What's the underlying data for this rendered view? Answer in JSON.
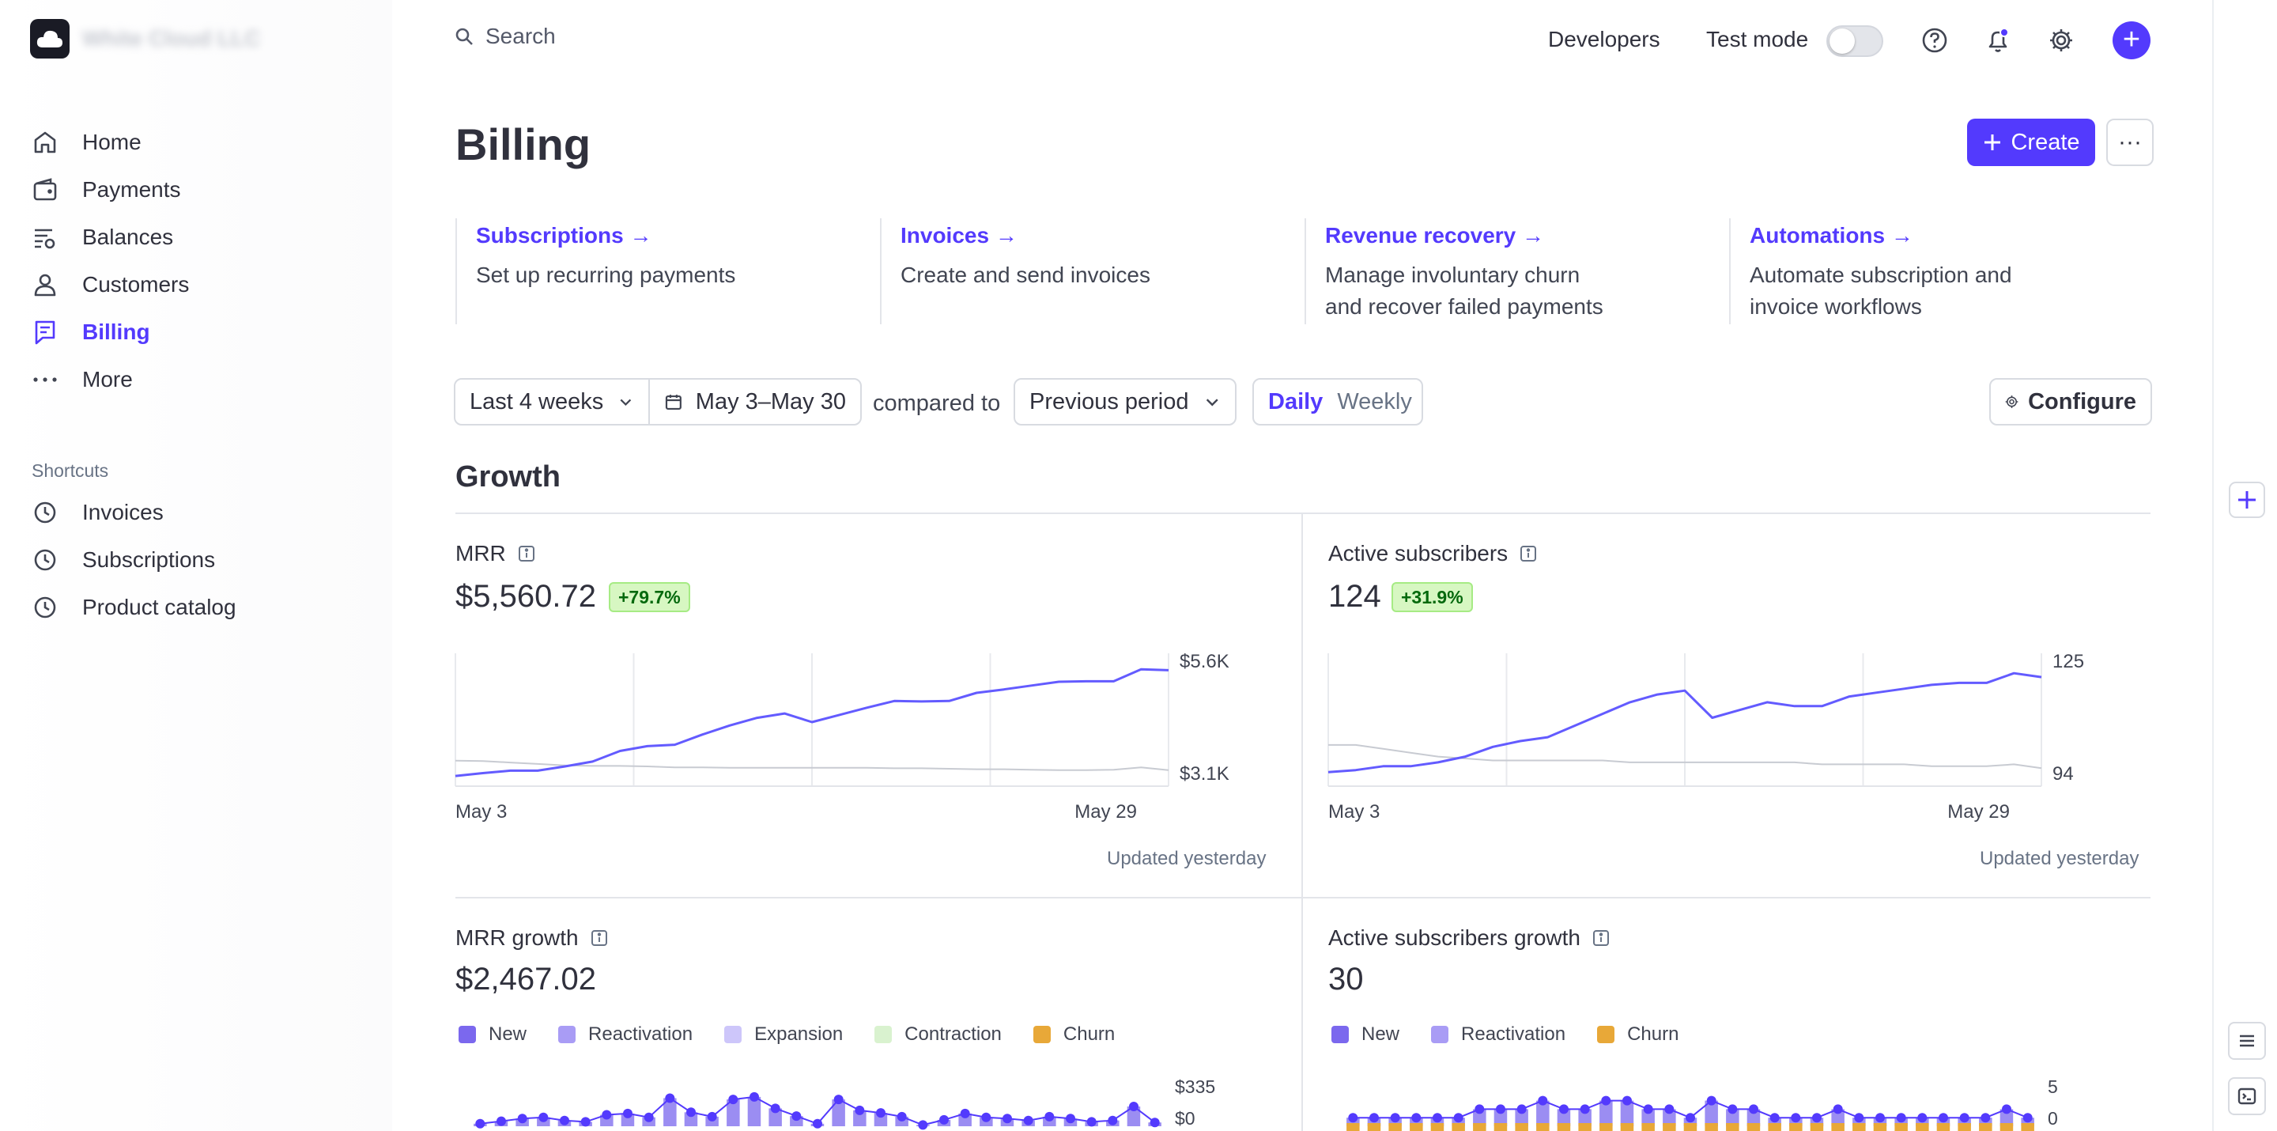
{
  "brand": {
    "name": "White Cloud LLC"
  },
  "sidebar": {
    "items": [
      {
        "label": "Home",
        "icon": "home-icon"
      },
      {
        "label": "Payments",
        "icon": "wallet-icon"
      },
      {
        "label": "Balances",
        "icon": "balances-icon"
      },
      {
        "label": "Customers",
        "icon": "person-icon"
      },
      {
        "label": "Billing",
        "icon": "billing-icon",
        "active": true
      },
      {
        "label": "More",
        "icon": "more-dots-icon"
      }
    ],
    "shortcuts_title": "Shortcuts",
    "shortcuts": [
      {
        "label": "Invoices",
        "icon": "clock-icon"
      },
      {
        "label": "Subscriptions",
        "icon": "clock-icon"
      },
      {
        "label": "Product catalog",
        "icon": "clock-icon"
      }
    ]
  },
  "topbar": {
    "search_placeholder": "Search",
    "developers": "Developers",
    "test_mode": "Test mode"
  },
  "page": {
    "title": "Billing",
    "create_label": "Create",
    "more_label": "···"
  },
  "features": [
    {
      "title": "Subscriptions →",
      "desc": [
        "Set up recurring payments"
      ]
    },
    {
      "title": "Invoices →",
      "desc": [
        "Create and send invoices"
      ]
    },
    {
      "title": "Revenue recovery →",
      "desc": [
        "Manage involuntary churn",
        "and recover failed payments"
      ]
    },
    {
      "title": "Automations →",
      "desc": [
        "Automate subscription and",
        "invoice workflows"
      ]
    }
  ],
  "filters": {
    "range": "Last 4 weeks",
    "dates": "May 3–May 30",
    "compared_to": "compared to",
    "comparison": "Previous period",
    "daily": "Daily",
    "weekly": "Weekly",
    "configure": "Configure"
  },
  "growth": {
    "heading": "Growth",
    "updated": "Updated yesterday",
    "mrr": {
      "label": "MRR",
      "value": "$5,560.72",
      "change": "+79.7%",
      "x_start": "May 3",
      "x_end": "May 29",
      "y_max_label": "$5.6K",
      "y_min_label": "$3.1K"
    },
    "active": {
      "label": "Active subscribers",
      "value": "124",
      "change": "+31.9%",
      "x_start": "May 3",
      "x_end": "May 29",
      "y_max_label": "125",
      "y_min_label": "94"
    },
    "mrr_growth": {
      "label": "MRR growth",
      "value": "$2,467.02",
      "y_max_label": "$335",
      "y_min_label": "$0"
    },
    "active_growth": {
      "label": "Active subscribers growth",
      "value": "30",
      "y_max_label": "5",
      "y_min_label": "0"
    },
    "legend_mrr": [
      {
        "name": "New",
        "color": "#7b68ee"
      },
      {
        "name": "Reactivation",
        "color": "#a99cf5"
      },
      {
        "name": "Expansion",
        "color": "#cdc6fa"
      },
      {
        "name": "Contraction",
        "color": "#d9f2cf"
      },
      {
        "name": "Churn",
        "color": "#e8a838"
      }
    ],
    "legend_active": [
      {
        "name": "New",
        "color": "#7b68ee"
      },
      {
        "name": "Reactivation",
        "color": "#a99cf5"
      },
      {
        "name": "Churn",
        "color": "#e8a838"
      }
    ]
  },
  "colors": {
    "accent": "#533afd",
    "line": "#635bff",
    "compare": "#c8cbd2"
  },
  "chart_data": [
    {
      "type": "line",
      "name": "MRR",
      "ylim": [
        3100,
        5600
      ],
      "series": [
        {
          "name": "current",
          "values": [
            3180,
            3240,
            3290,
            3290,
            3380,
            3480,
            3700,
            3800,
            3830,
            4040,
            4230,
            4390,
            4480,
            4300,
            4450,
            4600,
            4740,
            4730,
            4740,
            4910,
            4980,
            5060,
            5140,
            5150,
            5150,
            5400,
            5380
          ]
        },
        {
          "name": "previous",
          "values": [
            3500,
            3490,
            3460,
            3430,
            3400,
            3390,
            3390,
            3380,
            3360,
            3360,
            3350,
            3350,
            3350,
            3350,
            3350,
            3350,
            3340,
            3340,
            3330,
            3320,
            3320,
            3310,
            3300,
            3300,
            3310,
            3360,
            3300
          ]
        }
      ]
    },
    {
      "type": "line",
      "name": "Active subscribers",
      "ylim": [
        94,
        125
      ],
      "series": [
        {
          "name": "current",
          "values": [
            96,
            96.5,
            97.5,
            97.5,
            98.5,
            100,
            102.5,
            104,
            105,
            108,
            111,
            114,
            116,
            117,
            110,
            112,
            114,
            113,
            113,
            115.5,
            116.5,
            117.5,
            118.5,
            119,
            119,
            121.5,
            120.5
          ]
        },
        {
          "name": "previous",
          "values": [
            103,
            103,
            102,
            101,
            100,
            99.5,
            99,
            99,
            99,
            99,
            99,
            98.5,
            98.5,
            98.5,
            98.5,
            98.5,
            98.5,
            98.5,
            98,
            98,
            98,
            98,
            97.5,
            97.5,
            97.5,
            98,
            97
          ]
        }
      ]
    },
    {
      "type": "bar",
      "name": "MRR growth",
      "ylim": [
        0,
        335
      ],
      "values": [
        20,
        40,
        60,
        70,
        45,
        35,
        90,
        100,
        70,
        220,
        110,
        75,
        210,
        230,
        140,
        80,
        20,
        210,
        125,
        105,
        75,
        10,
        50,
        100,
        70,
        60,
        45,
        75,
        60,
        35,
        45,
        155,
        30
      ]
    },
    {
      "type": "bar",
      "name": "Active subscribers growth",
      "ylim": [
        0,
        5
      ],
      "values": [
        1,
        1,
        1,
        1,
        1,
        1,
        2,
        2,
        2,
        3,
        2,
        2,
        3,
        3,
        2,
        2,
        1,
        3,
        2,
        2,
        1,
        1,
        1,
        2,
        1,
        1,
        1,
        1,
        1,
        1,
        1,
        2,
        1
      ]
    }
  ]
}
